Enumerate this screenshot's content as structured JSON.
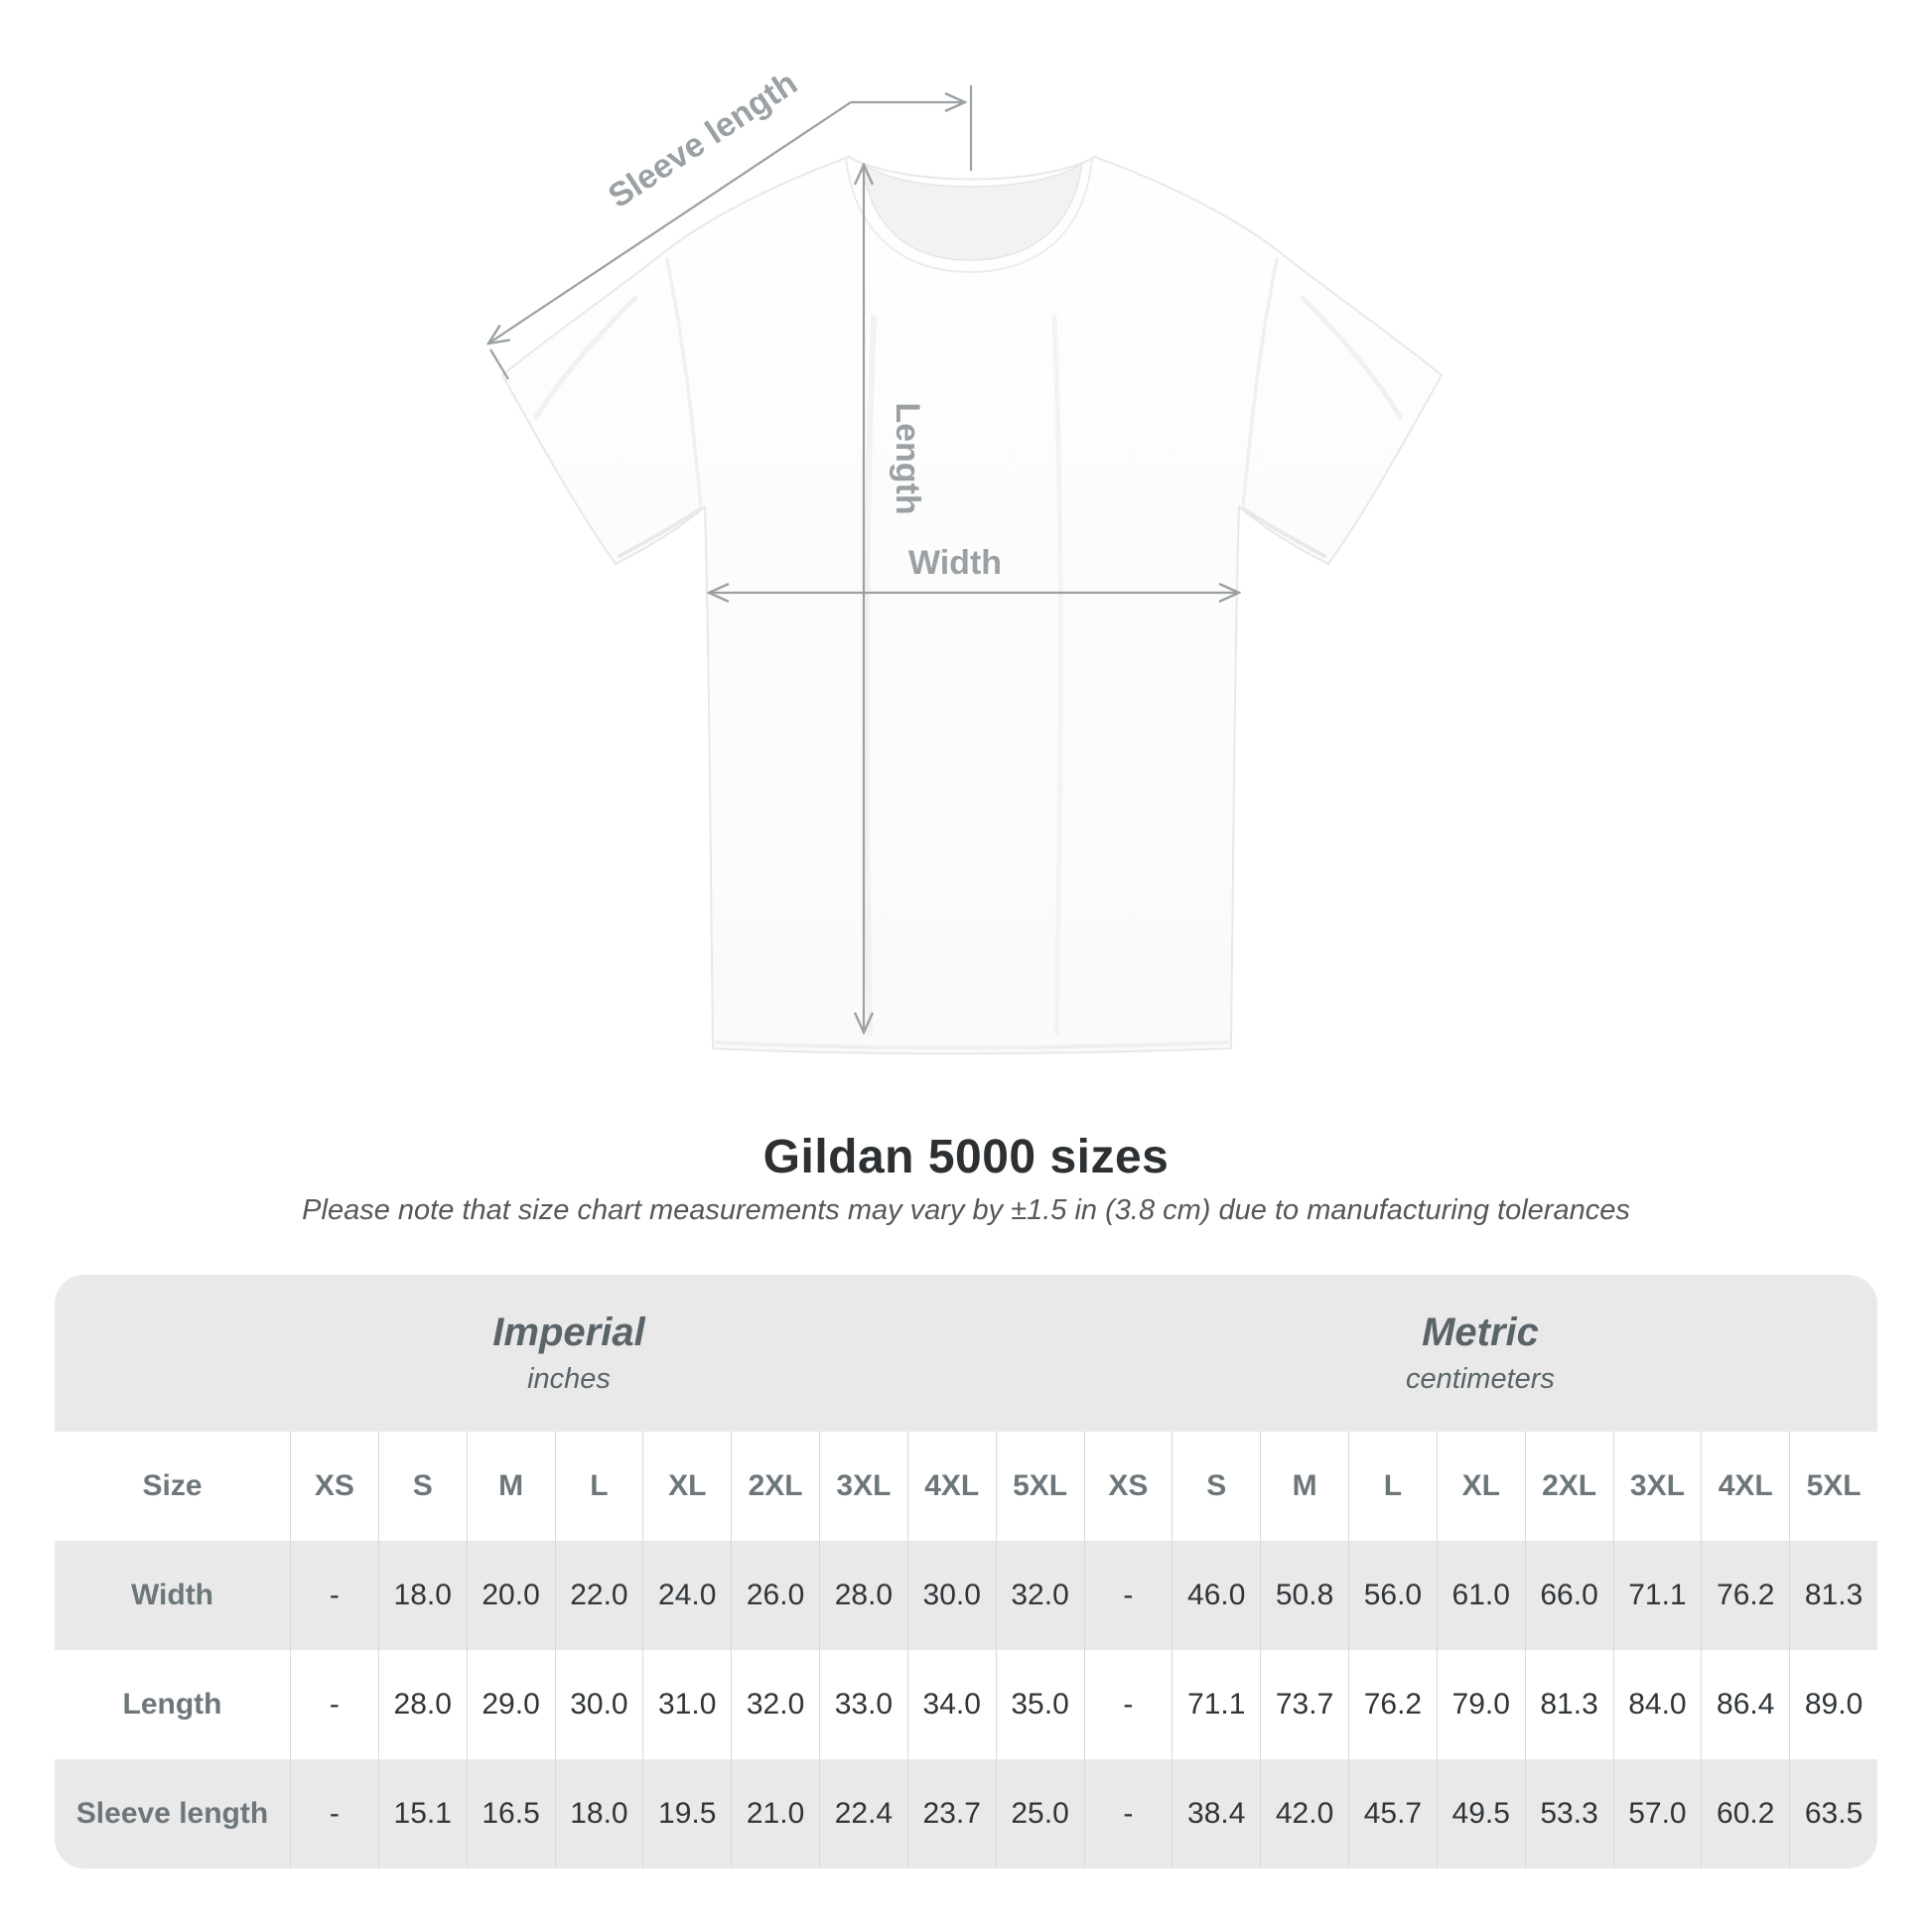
{
  "diagram": {
    "sleeve_length_label": "Sleeve length",
    "length_label": "Length",
    "width_label": "Width"
  },
  "heading": {
    "title": "Gildan 5000 sizes",
    "subtitle": "Please note that size chart measurements may vary by ±1.5 in (3.8 cm) due to manufacturing tolerances"
  },
  "table": {
    "groups": [
      {
        "name": "Imperial",
        "unit": "inches"
      },
      {
        "name": "Metric",
        "unit": "centimeters"
      }
    ],
    "size_header": "Size",
    "sizes": [
      "XS",
      "S",
      "M",
      "L",
      "XL",
      "2XL",
      "3XL",
      "4XL",
      "5XL"
    ],
    "rows": [
      {
        "label": "Width",
        "imperial": [
          "-",
          "18.0",
          "20.0",
          "22.0",
          "24.0",
          "26.0",
          "28.0",
          "30.0",
          "32.0"
        ],
        "metric": [
          "-",
          "46.0",
          "50.8",
          "56.0",
          "61.0",
          "66.0",
          "71.1",
          "76.2",
          "81.3"
        ]
      },
      {
        "label": "Length",
        "imperial": [
          "-",
          "28.0",
          "29.0",
          "30.0",
          "31.0",
          "32.0",
          "33.0",
          "34.0",
          "35.0"
        ],
        "metric": [
          "-",
          "71.1",
          "73.7",
          "76.2",
          "79.0",
          "81.3",
          "84.0",
          "86.4",
          "89.0"
        ]
      },
      {
        "label": "Sleeve length",
        "imperial": [
          "-",
          "15.1",
          "16.5",
          "18.0",
          "19.5",
          "21.0",
          "22.4",
          "23.7",
          "25.0"
        ],
        "metric": [
          "-",
          "38.4",
          "42.0",
          "45.7",
          "49.5",
          "53.3",
          "57.0",
          "60.2",
          "63.5"
        ]
      }
    ]
  },
  "colors": {
    "row_stripe": "#e9e9e9",
    "band_bg": "#e9e9e9",
    "annotation": "#9aa0a3",
    "value_text": "#303539",
    "header_text": "#6d767a",
    "group_text": "#5a6468",
    "title_text": "#2c3032",
    "subtitle_text": "#54585b",
    "separator": "#d9d9d9"
  }
}
